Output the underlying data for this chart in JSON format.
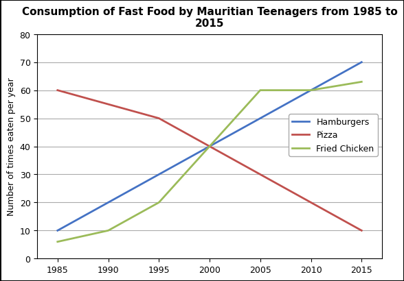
{
  "title": "Consumption of Fast Food by Mauritian Teenagers from 1985 to\n2015",
  "xlabel": "",
  "ylabel": "Number of times eaten per year",
  "years": [
    1985,
    1990,
    1995,
    2000,
    2005,
    2010,
    2015
  ],
  "hamburgers": [
    10,
    20,
    30,
    40,
    50,
    60,
    70
  ],
  "pizza": [
    60,
    55,
    50,
    40,
    30,
    20,
    10
  ],
  "fried_chicken": [
    6,
    10,
    20,
    40,
    60,
    60,
    63
  ],
  "hamburgers_color": "#4472C4",
  "pizza_color": "#C0504D",
  "fried_chicken_color": "#9BBB59",
  "ylim": [
    0,
    80
  ],
  "xlim": [
    1983,
    2017
  ],
  "yticks": [
    0,
    10,
    20,
    30,
    40,
    50,
    60,
    70,
    80
  ],
  "xticks": [
    1985,
    1990,
    1995,
    2000,
    2005,
    2010,
    2015
  ],
  "legend_labels": [
    "Hamburgers",
    "Pizza",
    "Fried Chicken"
  ],
  "title_fontsize": 11,
  "label_fontsize": 9,
  "tick_fontsize": 9,
  "legend_fontsize": 9,
  "linewidth": 2.0,
  "background_color": "#FFFFFF",
  "border_color": "#000000"
}
